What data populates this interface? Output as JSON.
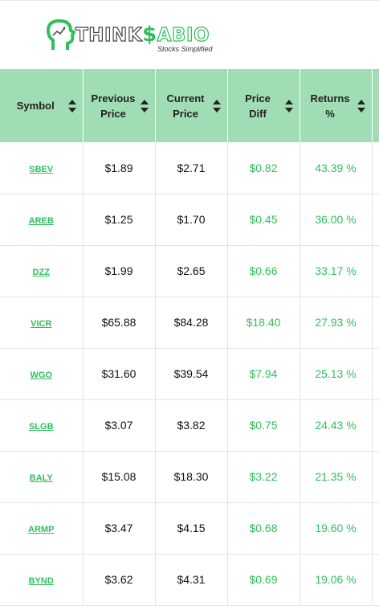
{
  "brand": {
    "name_part1": "THINK",
    "name_dollar": "$",
    "name_part2": "ABIO",
    "tagline": "Stocks Simplified",
    "accent_color": "#2fbf5b",
    "header_color": "#a1ddb4"
  },
  "table": {
    "headers": [
      {
        "line1": "Symbol",
        "line2": ""
      },
      {
        "line1": "Previous",
        "line2": "Price"
      },
      {
        "line1": "Current",
        "line2": "Price"
      },
      {
        "line1": "Price",
        "line2": "Diff"
      },
      {
        "line1": "Returns",
        "line2": "%"
      }
    ],
    "rows": [
      {
        "symbol": "SBEV",
        "previous": "$1.89",
        "current": "$2.71",
        "diff": "$0.82",
        "returns": "43.39 %"
      },
      {
        "symbol": "AREB",
        "previous": "$1.25",
        "current": "$1.70",
        "diff": "$0.45",
        "returns": "36.00 %"
      },
      {
        "symbol": "DZZ",
        "previous": "$1.99",
        "current": "$2.65",
        "diff": "$0.66",
        "returns": "33.17 %"
      },
      {
        "symbol": "VICR",
        "previous": "$65.88",
        "current": "$84.28",
        "diff": "$18.40",
        "returns": "27.93 %"
      },
      {
        "symbol": "WGO",
        "previous": "$31.60",
        "current": "$39.54",
        "diff": "$7.94",
        "returns": "25.13 %"
      },
      {
        "symbol": "SLGB",
        "previous": "$3.07",
        "current": "$3.82",
        "diff": "$0.75",
        "returns": "24.43 %"
      },
      {
        "symbol": "BALY",
        "previous": "$15.08",
        "current": "$18.30",
        "diff": "$3.22",
        "returns": "21.35 %"
      },
      {
        "symbol": "ARMP",
        "previous": "$3.47",
        "current": "$4.15",
        "diff": "$0.68",
        "returns": "19.60 %"
      },
      {
        "symbol": "BYND",
        "previous": "$3.62",
        "current": "$4.31",
        "diff": "$0.69",
        "returns": "19.06 %"
      }
    ]
  }
}
